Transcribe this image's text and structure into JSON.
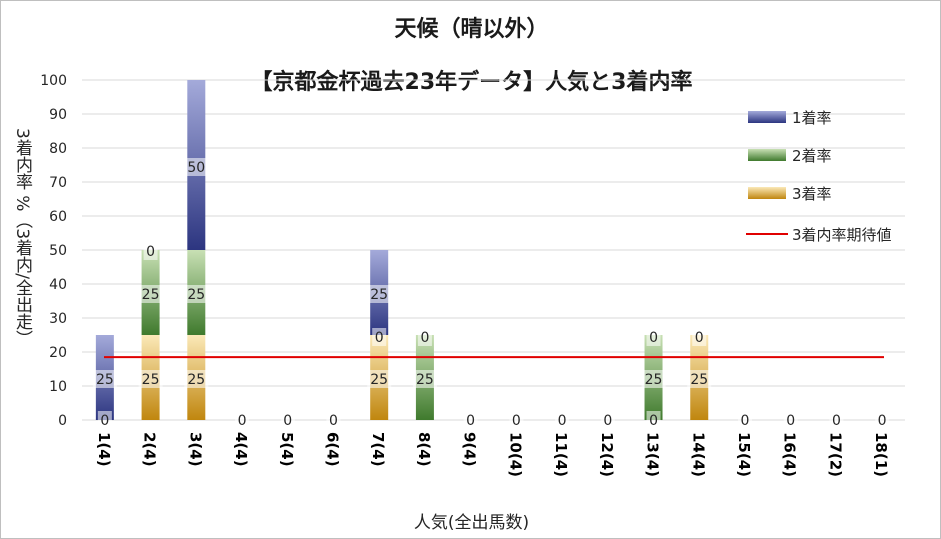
{
  "chart_data": {
    "type": "bar",
    "stacked": true,
    "title": "天候（晴以外）",
    "subtitle": "【京都金杯過去23年データ】人気と3着内率",
    "xlabel": "人気(全出馬数)",
    "ylabel": "3着内率 %（3着内/全出走）",
    "ylim": [
      0,
      100
    ],
    "yticks": [
      0,
      10,
      20,
      30,
      40,
      50,
      60,
      70,
      80,
      90,
      100
    ],
    "grid": true,
    "legend_position": "right",
    "categories": [
      "1(4)",
      "2(4)",
      "3(4)",
      "4(4)",
      "5(4)",
      "6(4)",
      "7(4)",
      "8(4)",
      "9(4)",
      "10(4)",
      "11(4)",
      "12(4)",
      "13(4)",
      "14(4)",
      "15(4)",
      "16(4)",
      "17(2)",
      "18(1)"
    ],
    "series": [
      {
        "name": "1着率",
        "values": [
          25,
          0,
          50,
          0,
          0,
          0,
          25,
          0,
          0,
          0,
          0,
          0,
          0,
          0,
          0,
          0,
          0,
          0
        ],
        "colors": [
          "#2c3580",
          "#a4aada"
        ]
      },
      {
        "name": "2着率",
        "values": [
          0,
          25,
          25,
          0,
          0,
          0,
          0,
          25,
          0,
          0,
          0,
          0,
          25,
          0,
          0,
          0,
          0,
          0
        ],
        "colors": [
          "#3f7a2d",
          "#c8e0b4"
        ]
      },
      {
        "name": "3着率",
        "values": [
          0,
          25,
          25,
          0,
          0,
          0,
          25,
          0,
          0,
          0,
          0,
          0,
          0,
          25,
          0,
          0,
          0,
          0
        ],
        "colors": [
          "#c0860e",
          "#fbe9b8"
        ]
      }
    ],
    "reference_line": {
      "name": "3着内率期待値",
      "value": 18.5,
      "color": "#e00000"
    },
    "data_labels": [
      [
        "0",
        "25"
      ],
      [
        "25",
        "25",
        "0"
      ],
      [
        "25",
        "25",
        "50"
      ],
      [
        "0"
      ],
      [
        "0"
      ],
      [
        "0"
      ],
      [
        "25",
        "0",
        "25"
      ],
      [
        "25",
        "0"
      ],
      [
        "0"
      ],
      [
        "0"
      ],
      [
        "0"
      ],
      [
        "0"
      ],
      [
        "25",
        "0",
        "0"
      ],
      [
        "25",
        "0"
      ],
      [
        "0"
      ],
      [
        "0"
      ],
      [
        "0"
      ],
      [
        "0"
      ]
    ]
  }
}
